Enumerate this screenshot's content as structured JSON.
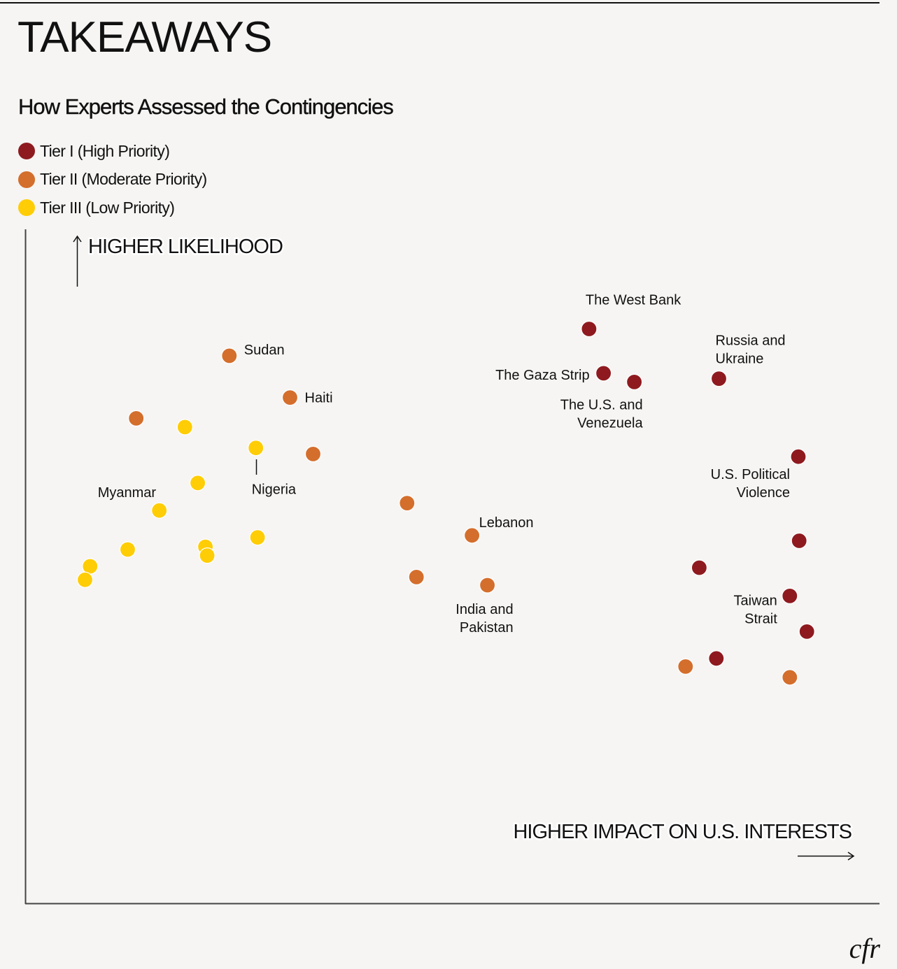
{
  "header": {
    "title": "TAKEAWAYS",
    "subtitle": "How Experts Assessed the Contingencies"
  },
  "brand": {
    "logo_text": "cfr"
  },
  "chart_data": {
    "type": "scatter",
    "title": "How Experts Assessed the Contingencies",
    "xlabel": "HIGHER IMPACT ON U.S. INTERESTS",
    "ylabel": "HIGHER LIKELIHOOD",
    "xlim": [
      0,
      100
    ],
    "ylim": [
      0,
      100
    ],
    "grid": false,
    "legend_position": "top-left",
    "legend": [
      {
        "name": "Tier I (High Priority)",
        "color": "#8E1A1F"
      },
      {
        "name": "Tier II (Moderate Priority)",
        "color": "#D46E2C"
      },
      {
        "name": "Tier III (Low Priority)",
        "color": "#FFCD05"
      }
    ],
    "series": [
      {
        "name": "Tier I (High Priority)",
        "color": "#8E1A1F",
        "points": [
          {
            "x": 66.0,
            "y": 85.4,
            "label": "The West Bank"
          },
          {
            "x": 67.7,
            "y": 78.8,
            "label": "The Gaza Strip"
          },
          {
            "x": 71.3,
            "y": 77.5,
            "label": "The U.S. and Venezuela"
          },
          {
            "x": 81.2,
            "y": 78.0,
            "label": "Russia and Ukraine"
          },
          {
            "x": 90.5,
            "y": 66.4,
            "label": "U.S. Political Violence"
          },
          {
            "x": 90.6,
            "y": 53.9,
            "label": ""
          },
          {
            "x": 78.9,
            "y": 49.9,
            "label": ""
          },
          {
            "x": 89.5,
            "y": 45.7,
            "label": "Taiwan Strait"
          },
          {
            "x": 91.5,
            "y": 40.4,
            "label": ""
          },
          {
            "x": 80.9,
            "y": 36.4,
            "label": ""
          }
        ]
      },
      {
        "name": "Tier II (Moderate Priority)",
        "color": "#D46E2C",
        "points": [
          {
            "x": 23.9,
            "y": 81.4,
            "label": "Sudan"
          },
          {
            "x": 31.0,
            "y": 75.2,
            "label": "Haiti"
          },
          {
            "x": 13.0,
            "y": 72.1,
            "label": ""
          },
          {
            "x": 33.7,
            "y": 66.8,
            "label": ""
          },
          {
            "x": 44.7,
            "y": 59.5,
            "label": ""
          },
          {
            "x": 52.3,
            "y": 54.7,
            "label": "Lebanon"
          },
          {
            "x": 45.8,
            "y": 48.5,
            "label": ""
          },
          {
            "x": 54.1,
            "y": 47.3,
            "label": "India and Pakistan"
          },
          {
            "x": 77.3,
            "y": 35.2,
            "label": ""
          },
          {
            "x": 89.5,
            "y": 33.6,
            "label": ""
          }
        ]
      },
      {
        "name": "Tier III (Low Priority)",
        "color": "#FFCD05",
        "points": [
          {
            "x": 18.7,
            "y": 70.8,
            "label": ""
          },
          {
            "x": 27.0,
            "y": 67.7,
            "label": "Nigeria"
          },
          {
            "x": 20.2,
            "y": 62.5,
            "label": ""
          },
          {
            "x": 15.7,
            "y": 58.4,
            "label": "Myanmar"
          },
          {
            "x": 27.2,
            "y": 54.4,
            "label": ""
          },
          {
            "x": 12.0,
            "y": 52.6,
            "label": ""
          },
          {
            "x": 21.1,
            "y": 53.0,
            "label": ""
          },
          {
            "x": 21.3,
            "y": 51.7,
            "label": ""
          },
          {
            "x": 7.6,
            "y": 50.1,
            "label": ""
          },
          {
            "x": 7.0,
            "y": 48.1,
            "label": ""
          }
        ]
      }
    ]
  }
}
